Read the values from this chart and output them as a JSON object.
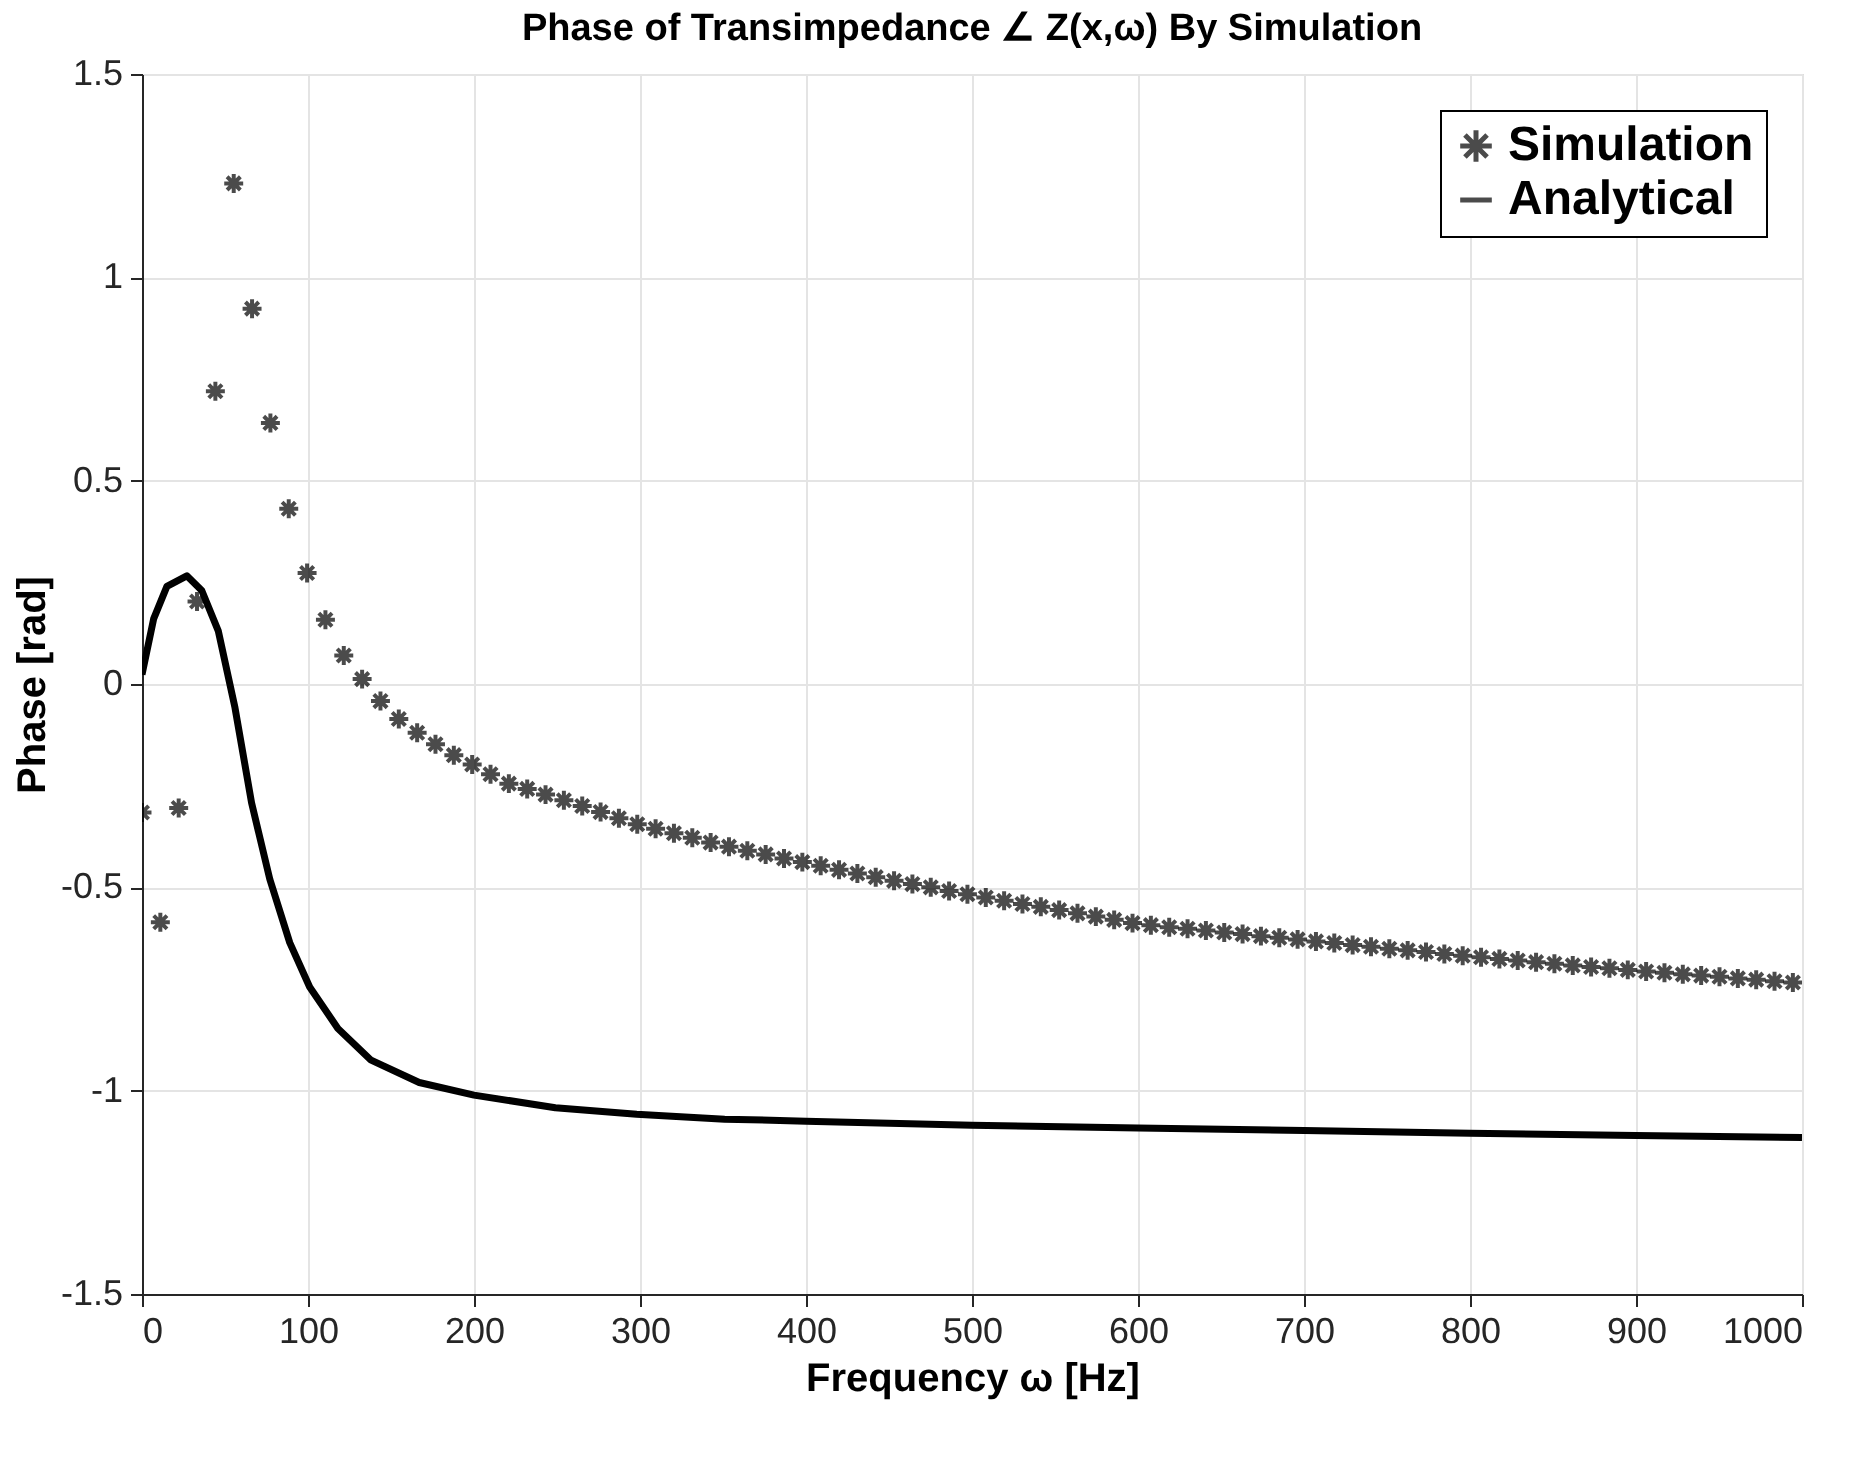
{
  "chart_data": {
    "type": "line",
    "title": "Phase of Transimpedance ∠ Z(x,ω) By Simulation",
    "xlabel": "Frequency ω [Hz]",
    "ylabel": "Phase [rad]",
    "xlim": [
      0,
      1000
    ],
    "xticks": [
      0,
      100,
      200,
      300,
      400,
      500,
      600,
      700,
      800,
      900,
      1000
    ],
    "ylim": [
      -1.5,
      1.5
    ],
    "yticks": [
      -1.5,
      -1,
      -0.5,
      0,
      0.5,
      1,
      1.5
    ],
    "grid": true,
    "legend": "top right",
    "series": [
      {
        "name": "Simulation",
        "type": "scatter",
        "marker": "cross",
        "color": "#000000",
        "x": [
          0,
          11.05,
          22.1,
          33.15,
          44.2,
          55.25,
          66.3,
          77.35,
          88.4,
          99.45,
          110.5,
          121.55,
          132.6,
          143.65,
          154.7,
          165.75,
          176.8,
          187.85,
          198.9,
          209.95,
          221,
          232.05,
          243.1,
          254.15,
          265.2,
          276.25,
          287.3,
          298.35,
          309.4,
          320.45,
          331.5,
          342.55,
          353.6,
          364.65,
          375.7,
          386.75,
          397.8,
          408.85,
          419.9,
          430.95,
          442,
          453.05,
          464.1,
          475.15,
          486.2,
          497.25,
          508.3,
          519.35,
          530.4,
          541.45,
          552.5,
          563.55,
          574.6,
          585.65,
          596.7,
          607.75,
          618.8,
          629.85,
          640.9,
          651.95,
          663,
          674.05,
          685.1,
          696.15,
          707.2,
          718.25,
          729.3,
          740.35,
          751.4,
          762.45,
          773.5,
          784.55,
          795.6,
          806.65,
          817.7,
          828.75,
          839.8,
          850.85,
          861.9,
          872.95,
          884,
          895.05,
          906.1,
          917.15,
          928.2,
          939.25,
          950.3,
          961.35,
          972.4,
          983.45,
          994.5
        ],
        "values": [
          -0.316,
          -0.586,
          -0.305,
          0.203,
          0.72,
          1.231,
          0.923,
          0.642,
          0.431,
          0.273,
          0.158,
          0.07,
          0.012,
          -0.042,
          -0.086,
          -0.12,
          -0.148,
          -0.175,
          -0.198,
          -0.222,
          -0.245,
          -0.258,
          -0.272,
          -0.286,
          -0.3,
          -0.315,
          -0.33,
          -0.345,
          -0.356,
          -0.367,
          -0.378,
          -0.39,
          -0.4,
          -0.41,
          -0.419,
          -0.429,
          -0.438,
          -0.447,
          -0.457,
          -0.466,
          -0.475,
          -0.484,
          -0.492,
          -0.5,
          -0.509,
          -0.517,
          -0.525,
          -0.533,
          -0.541,
          -0.548,
          -0.556,
          -0.564,
          -0.572,
          -0.58,
          -0.588,
          -0.593,
          -0.598,
          -0.602,
          -0.606,
          -0.611,
          -0.615,
          -0.62,
          -0.624,
          -0.628,
          -0.633,
          -0.637,
          -0.642,
          -0.646,
          -0.651,
          -0.655,
          -0.659,
          -0.664,
          -0.668,
          -0.672,
          -0.676,
          -0.68,
          -0.684,
          -0.688,
          -0.692,
          -0.696,
          -0.699,
          -0.703,
          -0.707,
          -0.71,
          -0.714,
          -0.717,
          -0.72,
          -0.724,
          -0.727,
          -0.731,
          -0.734
        ]
      },
      {
        "name": "Analytical",
        "type": "line",
        "line_style": "solid",
        "color": "#000000",
        "x": [
          0,
          7,
          15,
          27,
          36,
          46,
          56,
          66,
          77,
          89,
          101,
          118,
          138,
          167,
          200,
          249,
          298,
          351,
          400,
          500,
          600,
          700,
          800,
          900,
          1000
        ],
        "values": [
          0.023,
          0.16,
          0.24,
          0.266,
          0.23,
          0.13,
          -0.058,
          -0.292,
          -0.48,
          -0.636,
          -0.745,
          -0.847,
          -0.925,
          -0.98,
          -1.011,
          -1.042,
          -1.058,
          -1.07,
          -1.075,
          -1.085,
          -1.092,
          -1.098,
          -1.105,
          -1.11,
          -1.115
        ]
      }
    ]
  }
}
